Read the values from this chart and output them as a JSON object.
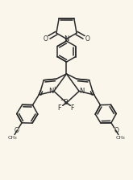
{
  "bg_color": "#faf6ec",
  "line_color": "#2a2a2a",
  "lw": 1.1,
  "fig_width": 1.65,
  "fig_height": 2.24,
  "dpi": 100,
  "xlim": [
    -1.1,
    1.1
  ],
  "ylim": [
    -1.4,
    1.3
  ]
}
